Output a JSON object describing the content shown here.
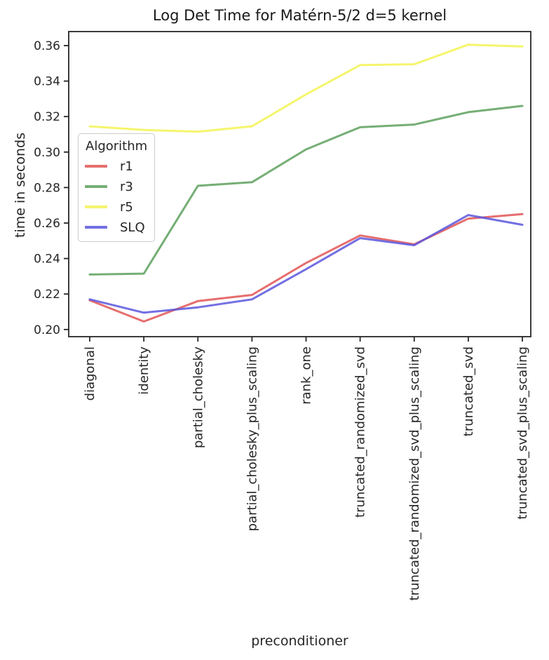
{
  "chart_data": {
    "type": "line",
    "title": "Log Det Time for Matérn-5/2 d=5 kernel",
    "xlabel": "preconditioner",
    "ylabel": "time in seconds",
    "ylim": [
      0.196,
      0.368
    ],
    "yticks": [
      0.2,
      0.22,
      0.24,
      0.26,
      0.28,
      0.3,
      0.32,
      0.34,
      0.36
    ],
    "grid": false,
    "legend": {
      "title": "Algorithm",
      "position": "upper-left-inside"
    },
    "axis_color": "#262626",
    "categories": [
      "diagonal",
      "identity",
      "partial_cholesky",
      "partial_cholesky_plus_scaling",
      "rank_one",
      "truncated_randomized_svd",
      "truncated_randomized_svd_plus_scaling",
      "truncated_svd",
      "truncated_svd_plus_scaling"
    ],
    "series": [
      {
        "name": "r1",
        "color": "#e25555",
        "values": [
          0.2165,
          0.2045,
          0.216,
          0.2195,
          0.2375,
          0.253,
          0.248,
          0.2625,
          0.265
        ]
      },
      {
        "name": "r3",
        "color": "#5da05d",
        "values": [
          0.231,
          0.2315,
          0.281,
          0.283,
          0.3015,
          0.314,
          0.3155,
          0.3225,
          0.326
        ]
      },
      {
        "name": "r5",
        "color": "#f3f354",
        "values": [
          0.3145,
          0.3125,
          0.3115,
          0.3145,
          0.3325,
          0.349,
          0.3495,
          0.3605,
          0.3595
        ]
      },
      {
        "name": "SLQ",
        "color": "#5b56dd",
        "values": [
          0.217,
          0.2095,
          0.2125,
          0.217,
          0.234,
          0.2515,
          0.2475,
          0.2645,
          0.259
        ]
      }
    ]
  }
}
